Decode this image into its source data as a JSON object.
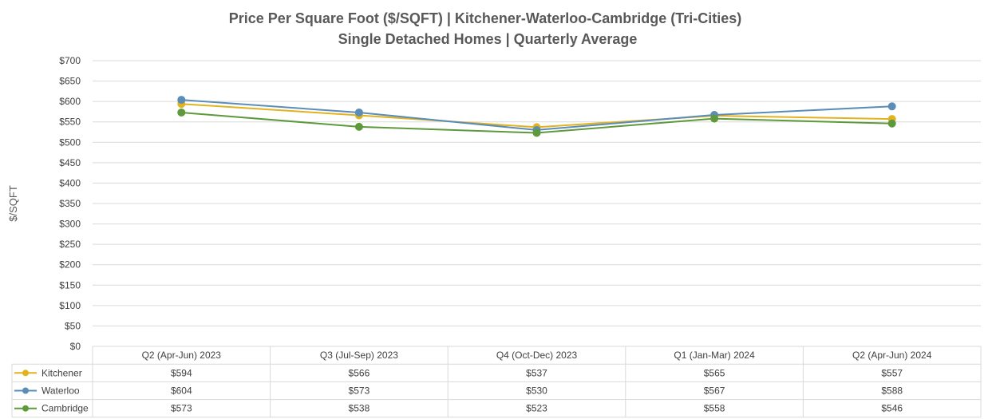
{
  "chart_data": {
    "type": "line",
    "title": "Price Per Square Foot ($/SQFT) | Kitchener-Waterloo-Cambridge (Tri-Cities)",
    "subtitle": "Single Detached Homes | Quarterly Average",
    "ylabel": "$/SQFT",
    "xlabel": "",
    "ylim": [
      0,
      700
    ],
    "y_ticks": [
      "$0",
      "$50",
      "$100",
      "$150",
      "$200",
      "$250",
      "$300",
      "$350",
      "$400",
      "$450",
      "$500",
      "$550",
      "$600",
      "$650",
      "$700"
    ],
    "grid": true,
    "legend": "data-table",
    "categories": [
      "Q2 (Apr-Jun) 2023",
      "Q3 (Jul-Sep) 2023",
      "Q4 (Oct-Dec) 2023",
      "Q1 (Jan-Mar) 2024",
      "Q2 (Apr-Jun) 2024"
    ],
    "series": [
      {
        "name": "Kitchener",
        "color": "#E2B31F",
        "values": [
          594,
          566,
          537,
          565,
          557
        ],
        "labels": [
          "$594",
          "$566",
          "$537",
          "$565",
          "$557"
        ]
      },
      {
        "name": "Waterloo",
        "color": "#5B8DB8",
        "values": [
          604,
          573,
          530,
          567,
          588
        ],
        "labels": [
          "$604",
          "$573",
          "$530",
          "$567",
          "$588"
        ]
      },
      {
        "name": "Cambridge",
        "color": "#5E9A3C",
        "values": [
          573,
          538,
          523,
          558,
          546
        ],
        "labels": [
          "$573",
          "$538",
          "$523",
          "$558",
          "$546"
        ]
      }
    ]
  }
}
